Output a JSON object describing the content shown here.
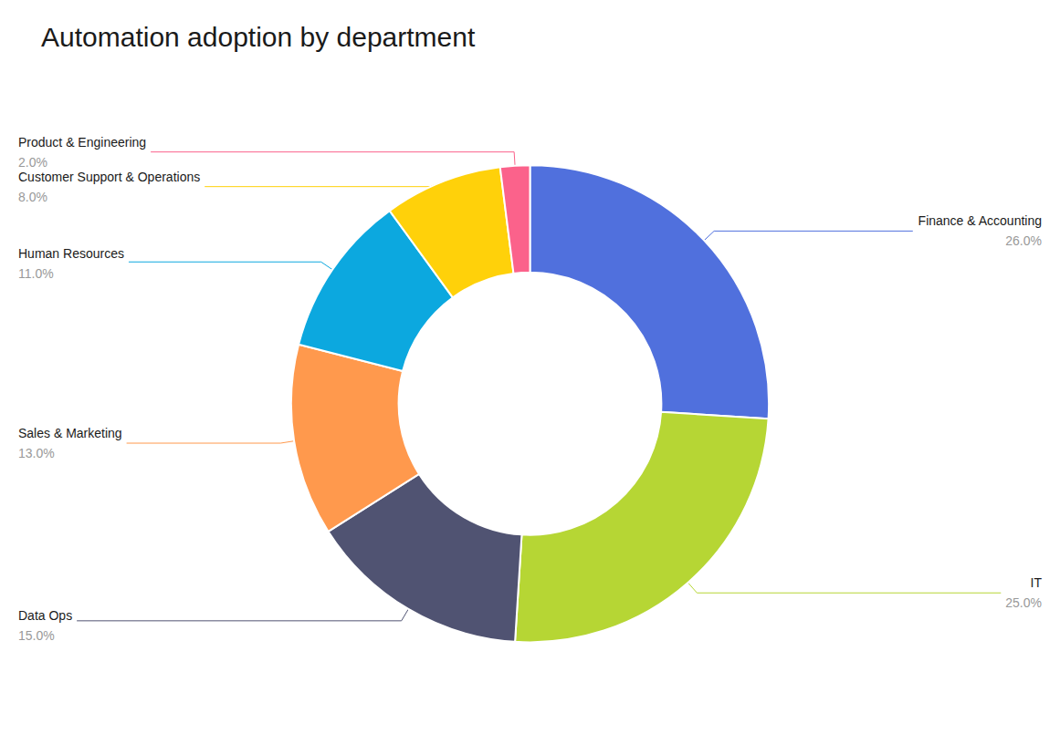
{
  "chart_data": {
    "type": "pie",
    "title": "Automation adoption by department",
    "categories": [
      "Finance & Accounting",
      "IT",
      "Data Ops",
      "Sales & Marketing",
      "Human Resources",
      "Customer Support & Operations",
      "Product & Engineering"
    ],
    "values": [
      26.0,
      25.0,
      15.0,
      13.0,
      11.0,
      8.0,
      2.0
    ],
    "value_labels": [
      "26.0%",
      "25.0%",
      "15.0%",
      "13.0%",
      "11.0%",
      "8.0%",
      "2.0%"
    ]
  }
}
